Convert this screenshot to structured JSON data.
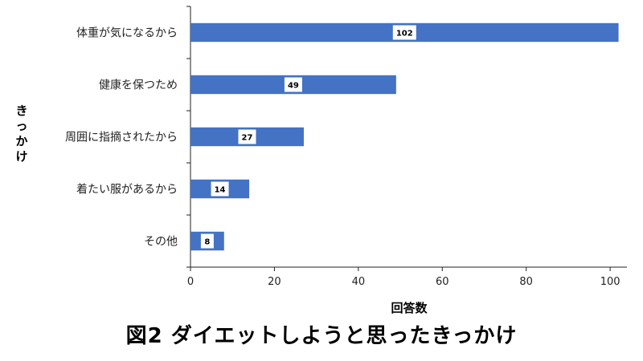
{
  "caption": "図2 ダイエットしようと思ったきっかけ",
  "chart_data": {
    "type": "bar",
    "orientation": "horizontal",
    "categories": [
      "体重が気になるから",
      "健康を保つため",
      "周囲に指摘されたから",
      "着たい服があるから",
      "その他"
    ],
    "values": [
      102,
      49,
      27,
      14,
      8
    ],
    "data_labels": [
      "102",
      "49",
      "27",
      "14",
      "8"
    ],
    "xlabel": "回答数",
    "ylabel": "きっかけ",
    "xlim": [
      0,
      104
    ],
    "xticks": [
      0,
      20,
      40,
      60,
      80,
      100
    ],
    "xtick_labels": [
      "0",
      "20",
      "40",
      "60",
      "80",
      "100"
    ],
    "bar_color": "#4472c4",
    "grid": false
  }
}
